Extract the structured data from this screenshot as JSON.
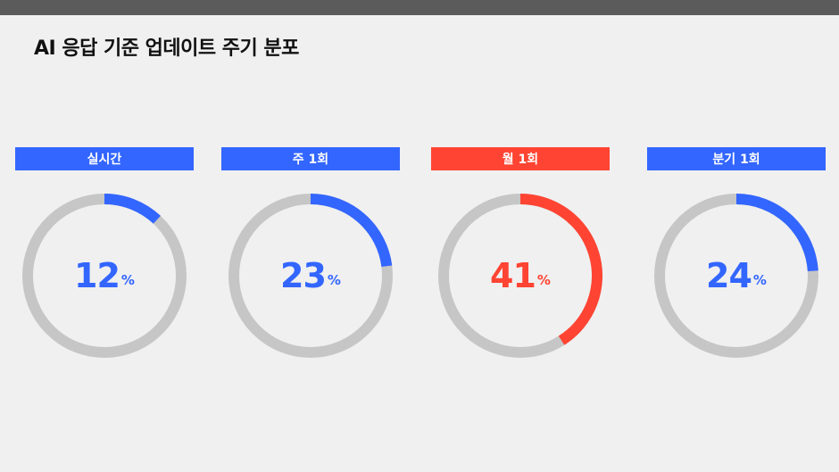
{
  "title": "AI 응답 기준 업데이트 주기 분포",
  "colors": {
    "normal": "#3366ff",
    "highlight": "#ff4433",
    "track": "#c6c6c6"
  },
  "chart_data": {
    "type": "pie",
    "title": "AI 응답 기준 업데이트 주기 분포",
    "unit": "%",
    "categories": [
      "실시간",
      "주 1회",
      "월 1회",
      "분기 1회"
    ],
    "values": [
      12,
      23,
      41,
      24
    ],
    "highlight": "월 1회"
  },
  "cards": [
    {
      "label": "실시간",
      "value": "12",
      "unit": "%"
    },
    {
      "label": "주 1회",
      "value": "23",
      "unit": "%"
    },
    {
      "label": "월 1회",
      "value": "41",
      "unit": "%"
    },
    {
      "label": "분기 1회",
      "value": "24",
      "unit": "%"
    }
  ]
}
